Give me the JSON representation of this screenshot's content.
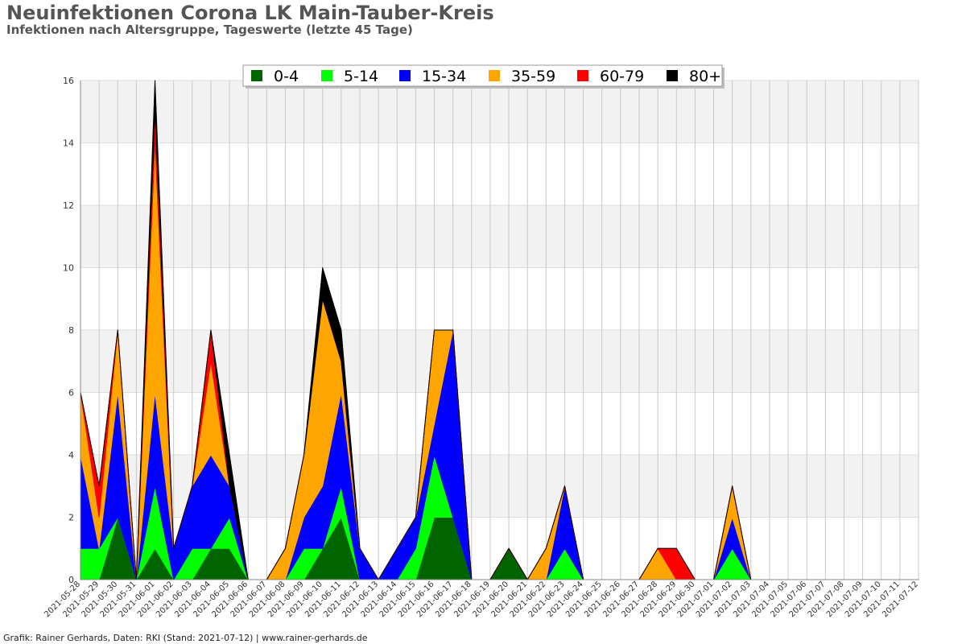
{
  "header": {
    "title": "Neuinfektionen Corona LK Main-Tauber-Kreis",
    "subtitle": "Infektionen nach Altersgruppe, Tageswerte (letzte 45 Tage)"
  },
  "footer": {
    "text": "Grafik: Rainer Gerhards, Daten: RKI (Stand: 2021-07-12) | www.rainer-gerhards.de"
  },
  "chart_data": {
    "type": "area",
    "stacked": true,
    "ylim": [
      0,
      16
    ],
    "yticks": [
      0,
      2,
      4,
      6,
      8,
      10,
      12,
      14,
      16
    ],
    "grid": true,
    "legend_position": "top-center",
    "x": [
      "2021-05-28",
      "2021-05-29",
      "2021-05-30",
      "2021-05-31",
      "2021-06-01",
      "2021-06-02",
      "2021-06-03",
      "2021-06-04",
      "2021-06-05",
      "2021-06-06",
      "2021-06-07",
      "2021-06-08",
      "2021-06-09",
      "2021-06-10",
      "2021-06-11",
      "2021-06-12",
      "2021-06-13",
      "2021-06-14",
      "2021-06-15",
      "2021-06-16",
      "2021-06-17",
      "2021-06-18",
      "2021-06-19",
      "2021-06-20",
      "2021-06-21",
      "2021-06-22",
      "2021-06-23",
      "2021-06-24",
      "2021-06-25",
      "2021-06-26",
      "2021-06-27",
      "2021-06-28",
      "2021-06-29",
      "2021-06-30",
      "2021-07-01",
      "2021-07-02",
      "2021-07-03",
      "2021-07-04",
      "2021-07-05",
      "2021-07-06",
      "2021-07-07",
      "2021-07-08",
      "2021-07-09",
      "2021-07-10",
      "2021-07-11",
      "2021-07-12"
    ],
    "series": [
      {
        "name": "0-4",
        "color": "#006400",
        "values": [
          0,
          0,
          2,
          0,
          1,
          0,
          0,
          1,
          1,
          0,
          0,
          0,
          0,
          1,
          2,
          0,
          0,
          0,
          0,
          2,
          2,
          0,
          0,
          1,
          0,
          0,
          0,
          0,
          0,
          0,
          0,
          0,
          0,
          0,
          0,
          0,
          0,
          0,
          0,
          0,
          0,
          0,
          0,
          0,
          0,
          0
        ]
      },
      {
        "name": "5-14",
        "color": "#00ff00",
        "values": [
          1,
          1,
          0,
          0,
          2,
          0,
          1,
          0,
          1,
          0,
          0,
          0,
          1,
          0,
          1,
          0,
          0,
          0,
          1,
          2,
          0,
          0,
          0,
          0,
          0,
          0,
          1,
          0,
          0,
          0,
          0,
          0,
          0,
          0,
          0,
          1,
          0,
          0,
          0,
          0,
          0,
          0,
          0,
          0,
          0,
          0
        ]
      },
      {
        "name": "15-34",
        "color": "#0000ff",
        "values": [
          3,
          0,
          4,
          0,
          3,
          1,
          2,
          3,
          1,
          0,
          0,
          0,
          1,
          2,
          3,
          1,
          0,
          1,
          1,
          1,
          6,
          0,
          0,
          0,
          0,
          0,
          2,
          0,
          0,
          0,
          0,
          0,
          0,
          0,
          0,
          1,
          0,
          0,
          0,
          0,
          0,
          0,
          0,
          0,
          0,
          0
        ]
      },
      {
        "name": "35-59",
        "color": "#ffa500",
        "values": [
          2,
          1,
          2,
          0,
          8,
          0,
          0,
          3,
          0,
          0,
          0,
          1,
          2,
          6,
          1,
          0,
          0,
          0,
          0,
          3,
          0,
          0,
          0,
          0,
          0,
          1,
          0,
          0,
          0,
          0,
          0,
          1,
          0,
          0,
          0,
          1,
          0,
          0,
          0,
          0,
          0,
          0,
          0,
          0,
          0,
          0
        ]
      },
      {
        "name": "60-79",
        "color": "#ff0000",
        "values": [
          0,
          1,
          0,
          0,
          1,
          0,
          0,
          1,
          0,
          0,
          0,
          0,
          0,
          0,
          0,
          0,
          0,
          0,
          0,
          0,
          0,
          0,
          0,
          0,
          0,
          0,
          0,
          0,
          0,
          0,
          0,
          0,
          1,
          0,
          0,
          0,
          0,
          0,
          0,
          0,
          0,
          0,
          0,
          0,
          0,
          0
        ]
      },
      {
        "name": "80+",
        "color": "#000000",
        "values": [
          0,
          0,
          0,
          0,
          1,
          0,
          0,
          0,
          1,
          0,
          0,
          0,
          0,
          1,
          1,
          0,
          0,
          0,
          0,
          0,
          0,
          0,
          0,
          0,
          0,
          0,
          0,
          0,
          0,
          0,
          0,
          0,
          0,
          0,
          0,
          0,
          0,
          0,
          0,
          0,
          0,
          0,
          0,
          0,
          0,
          0
        ]
      }
    ]
  }
}
